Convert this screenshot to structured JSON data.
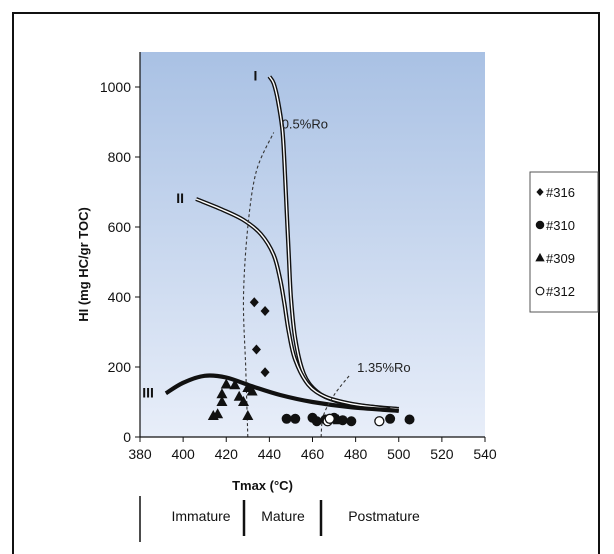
{
  "chart_data": {
    "type": "scatter",
    "xlabel": "Tmax (°C)",
    "ylabel": "HI (mg HC/gr TOC)",
    "xlim": [
      380,
      540
    ],
    "ylim": [
      0,
      1100
    ],
    "x_ticks": [
      380,
      400,
      420,
      440,
      460,
      480,
      500,
      520,
      540
    ],
    "y_ticks": [
      0,
      200,
      400,
      600,
      800,
      1000
    ],
    "grid": false,
    "legend_position": "right",
    "series": [
      {
        "name": "#316",
        "marker": "diamond",
        "points": [
          [
            433,
            385
          ],
          [
            438,
            360
          ],
          [
            434,
            250
          ],
          [
            438,
            185
          ]
        ]
      },
      {
        "name": "#310",
        "marker": "circle",
        "points": [
          [
            448,
            52
          ],
          [
            452,
            52
          ],
          [
            460,
            55
          ],
          [
            462,
            45
          ],
          [
            466,
            50
          ],
          [
            470,
            55
          ],
          [
            474,
            48
          ],
          [
            478,
            45
          ],
          [
            496,
            52
          ],
          [
            505,
            50
          ]
        ]
      },
      {
        "name": "#309",
        "marker": "triangle",
        "points": [
          [
            420,
            150
          ],
          [
            424,
            148
          ],
          [
            430,
            140
          ],
          [
            432,
            130
          ],
          [
            418,
            122
          ],
          [
            426,
            115
          ],
          [
            418,
            100
          ],
          [
            428,
            100
          ],
          [
            414,
            60
          ],
          [
            416,
            65
          ],
          [
            430,
            60
          ],
          [
            469,
            50
          ],
          [
            472,
            48
          ]
        ]
      },
      {
        "name": "#312",
        "marker": "open-circle",
        "points": [
          [
            467,
            45
          ],
          [
            468,
            52
          ],
          [
            491,
            45
          ]
        ]
      }
    ],
    "kerogen_curves": [
      {
        "label": "I",
        "points": [
          [
            440,
            1030
          ],
          [
            442,
            1010
          ],
          [
            444,
            960
          ],
          [
            446,
            880
          ],
          [
            447,
            780
          ],
          [
            448,
            650
          ],
          [
            449,
            520
          ],
          [
            450,
            400
          ],
          [
            452,
            280
          ],
          [
            456,
            180
          ],
          [
            462,
            130
          ],
          [
            470,
            105
          ],
          [
            482,
            90
          ],
          [
            500,
            80
          ]
        ]
      },
      {
        "label": "II",
        "points": [
          [
            406,
            680
          ],
          [
            418,
            650
          ],
          [
            428,
            620
          ],
          [
            436,
            580
          ],
          [
            442,
            520
          ],
          [
            445,
            450
          ],
          [
            447,
            380
          ],
          [
            449,
            300
          ],
          [
            452,
            220
          ],
          [
            458,
            150
          ],
          [
            466,
            115
          ],
          [
            478,
            95
          ],
          [
            496,
            80
          ]
        ]
      },
      {
        "label": "III",
        "points": [
          [
            392,
            125
          ],
          [
            400,
            155
          ],
          [
            410,
            175
          ],
          [
            420,
            170
          ],
          [
            432,
            145
          ],
          [
            445,
            120
          ],
          [
            460,
            100
          ],
          [
            478,
            85
          ],
          [
            500,
            75
          ]
        ]
      }
    ],
    "maturity_lines": [
      {
        "label": "0.5%Ro",
        "points": [
          [
            430,
            0
          ],
          [
            429,
            200
          ],
          [
            428,
            400
          ],
          [
            430,
            600
          ],
          [
            434,
            760
          ],
          [
            442,
            870
          ]
        ]
      },
      {
        "label": "1.35%Ro",
        "points": [
          [
            464,
            0
          ],
          [
            465,
            60
          ],
          [
            470,
            120
          ],
          [
            477,
            175
          ]
        ]
      }
    ],
    "maturity_zones": [
      "Immature",
      "Mature",
      "Postmature"
    ]
  }
}
